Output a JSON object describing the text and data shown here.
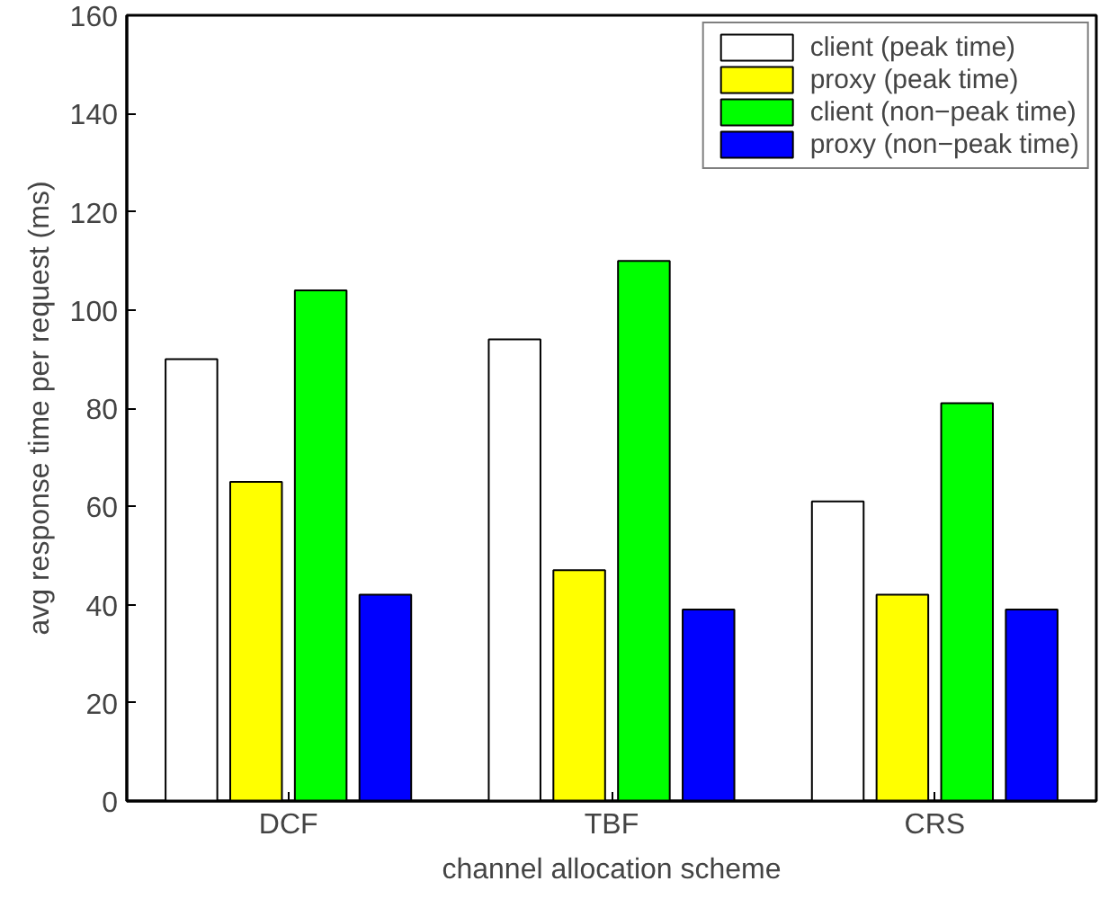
{
  "chart_data": {
    "type": "bar",
    "xlabel": "channel allocation scheme",
    "ylabel": "avg response time per request (ms)",
    "categories": [
      "DCF",
      "TBF",
      "CRS"
    ],
    "series": [
      {
        "name": "client (peak time)",
        "color": "#ffffff",
        "values": [
          90,
          94,
          61
        ]
      },
      {
        "name": "proxy (peak time)",
        "color": "#ffff00",
        "values": [
          65,
          47,
          42
        ]
      },
      {
        "name": "client (non−peak time)",
        "color": "#00ff00",
        "values": [
          104,
          110,
          81
        ]
      },
      {
        "name": "proxy (non−peak time)",
        "color": "#0000ff",
        "values": [
          42,
          39,
          39
        ]
      }
    ],
    "ylim": [
      0,
      160
    ],
    "yticks": [
      0,
      20,
      40,
      60,
      80,
      100,
      120,
      140,
      160
    ],
    "grid": false,
    "legend": "top right"
  }
}
